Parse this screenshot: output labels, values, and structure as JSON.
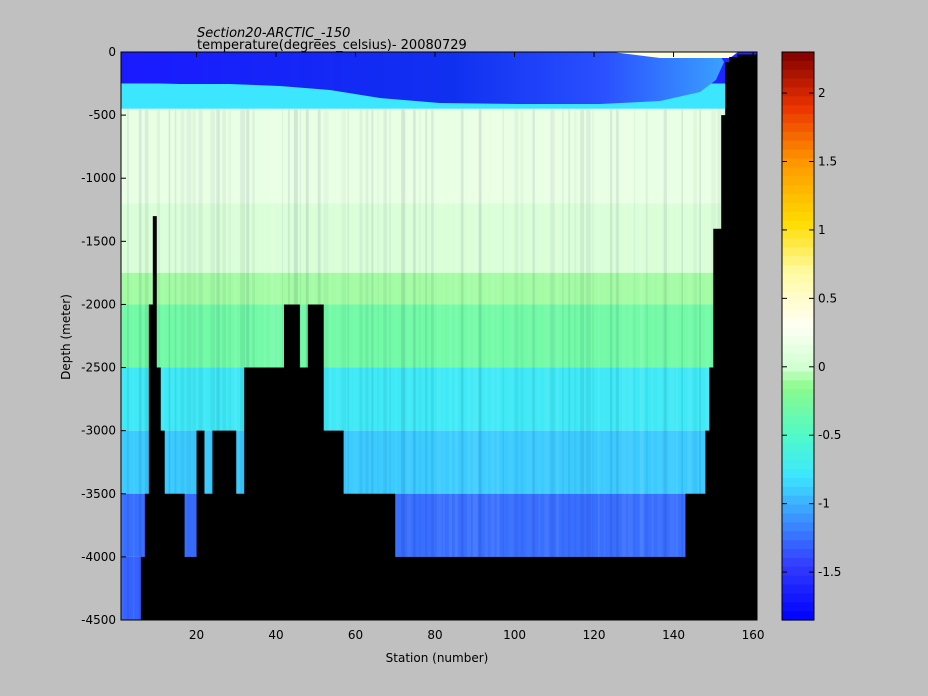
{
  "chart_data": {
    "type": "heatmap",
    "title": "Section20-ARCTIC_-150",
    "subtitle": "temperature(degrees_celsius)- 20080729",
    "xlabel": "Station (number)",
    "ylabel": "Depth (meter)",
    "xlim": [
      1,
      161
    ],
    "ylim": [
      -4500,
      0
    ],
    "x_ticks": [
      20,
      40,
      60,
      80,
      100,
      120,
      140,
      160
    ],
    "y_ticks": [
      0,
      -500,
      -1000,
      -1500,
      -2000,
      -2500,
      -3000,
      -3500,
      -4000,
      -4500
    ],
    "colorbar": {
      "min": -1.85,
      "max": 2.3,
      "ticks": [
        2,
        1.5,
        1,
        0.5,
        0,
        -0.5,
        -1,
        -1.5
      ],
      "colormap": "jet-like (blue-cyan-green-white-yellow-red)"
    },
    "depth_layers": [
      {
        "depth_top": 0,
        "depth_bottom": 250,
        "temperature": -1.6
      },
      {
        "depth_top": 250,
        "depth_bottom": 450,
        "temperature": -0.8
      },
      {
        "depth_top": 450,
        "depth_bottom": 1200,
        "temperature": 0.15
      },
      {
        "depth_top": 1200,
        "depth_bottom": 1750,
        "temperature": 0.05
      },
      {
        "depth_top": 1750,
        "depth_bottom": 2000,
        "temperature": -0.1
      },
      {
        "depth_top": 2000,
        "depth_bottom": 2500,
        "temperature": -0.3
      },
      {
        "depth_top": 2500,
        "depth_bottom": 3000,
        "temperature": -0.75
      },
      {
        "depth_top": 3000,
        "depth_bottom": 3500,
        "temperature": -0.9
      },
      {
        "depth_top": 3500,
        "depth_bottom": 4000,
        "temperature": -1.25
      },
      {
        "depth_top": 4000,
        "depth_bottom": 4500,
        "temperature": -1.3
      }
    ],
    "seafloor_depth_by_station": [
      [
        1,
        4500
      ],
      [
        5,
        4500
      ],
      [
        6,
        4000
      ],
      [
        7,
        3500
      ],
      [
        8,
        2000
      ],
      [
        9,
        1300
      ],
      [
        10,
        2500
      ],
      [
        11,
        3000
      ],
      [
        12,
        3500
      ],
      [
        13,
        3500
      ],
      [
        16,
        3500
      ],
      [
        17,
        4000
      ],
      [
        20,
        3000
      ],
      [
        22,
        3500
      ],
      [
        24,
        3000
      ],
      [
        30,
        3500
      ],
      [
        32,
        2500
      ],
      [
        34,
        2500
      ],
      [
        40,
        2500
      ],
      [
        42,
        2000
      ],
      [
        45,
        2000
      ],
      [
        46,
        2500
      ],
      [
        48,
        2000
      ],
      [
        52,
        3000
      ],
      [
        56,
        3000
      ],
      [
        57,
        3500
      ],
      [
        62,
        3500
      ],
      [
        66,
        3500
      ],
      [
        70,
        4000
      ],
      [
        142,
        4000
      ],
      [
        143,
        3500
      ],
      [
        147,
        3500
      ],
      [
        148,
        3000
      ],
      [
        149,
        2500
      ],
      [
        150,
        1400
      ],
      [
        151,
        1400
      ],
      [
        152,
        500
      ],
      [
        153,
        80
      ],
      [
        154,
        40
      ],
      [
        156,
        20
      ],
      [
        161,
        20
      ]
    ]
  }
}
